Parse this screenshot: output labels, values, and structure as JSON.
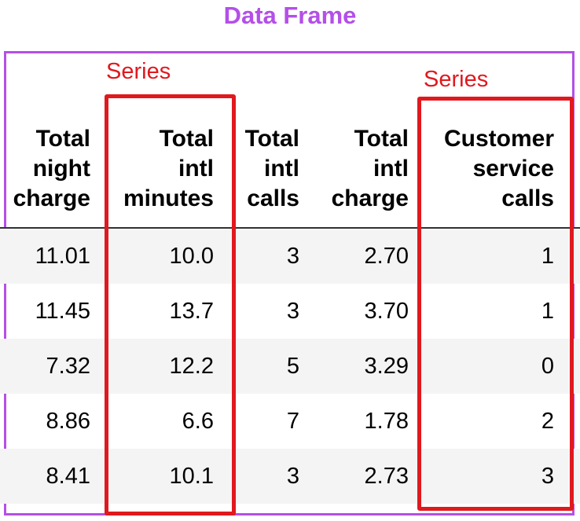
{
  "title": "Data Frame",
  "columns": [
    {
      "lines": [
        "Total",
        "night",
        "charge"
      ]
    },
    {
      "lines": [
        "Total",
        "intl",
        "minutes"
      ]
    },
    {
      "lines": [
        "Total",
        "intl",
        "calls"
      ]
    },
    {
      "lines": [
        "Total",
        "intl",
        "charge"
      ]
    },
    {
      "lines": [
        "Customer",
        "service",
        "calls"
      ]
    }
  ],
  "rows": [
    [
      "11.01",
      "10.0",
      "3",
      "2.70",
      "1"
    ],
    [
      "11.45",
      "13.7",
      "3",
      "3.70",
      "1"
    ],
    [
      "7.32",
      "12.2",
      "5",
      "3.29",
      "0"
    ],
    [
      "8.86",
      "6.6",
      "7",
      "1.78",
      "2"
    ],
    [
      "8.41",
      "10.1",
      "3",
      "2.73",
      "3"
    ]
  ],
  "series_labels": [
    "Series",
    "Series"
  ],
  "colors": {
    "frame": "#b44fe8",
    "series": "#e0191e",
    "row_shade": "#f4f4f4"
  }
}
